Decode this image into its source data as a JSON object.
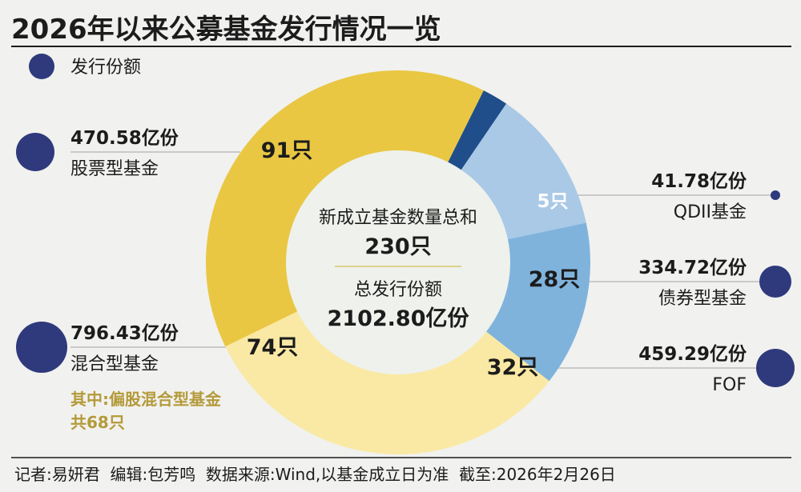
{
  "title": "2026年以来公募基金发行情况一览",
  "legend_label": "发行份额",
  "center": {
    "count_label": "新成立基金数量总和",
    "count_value": "230只",
    "share_label": "总发行份额",
    "share_value": "2102.80亿份"
  },
  "note": {
    "line1": "其中:偏股混合型基金",
    "line2": "共68只"
  },
  "footer": "记者:易妍君  编辑:包芳鸣  数据来源:Wind,以基金成立日为准  截至:2026年2月26日",
  "colors": {
    "stock": "#e9c743",
    "hybrid": "#fae9a4",
    "fof": "#7fb3dc",
    "bond": "#a9c9e6",
    "qdii": "#1f4e8a",
    "dot": "#2f3a7d",
    "center": "#eef1ec"
  },
  "chart_data": {
    "type": "pie",
    "title": "2026年以来公募基金发行情况一览",
    "unit_count": "只",
    "unit_share": "亿份",
    "slices": [
      {
        "name": "股票型基金",
        "count": 91,
        "count_label": "91只",
        "share": 470.58,
        "share_label": "470.58亿份",
        "color": "#e9c743"
      },
      {
        "name": "QDII基金",
        "count": 5,
        "count_label": "5只",
        "share": 41.78,
        "share_label": "41.78亿份",
        "color": "#1f4e8a"
      },
      {
        "name": "债券型基金",
        "count": 28,
        "count_label": "28只",
        "share": 334.72,
        "share_label": "334.72亿份",
        "color": "#a9c9e6"
      },
      {
        "name": "FOF",
        "count": 32,
        "count_label": "32只",
        "share": 459.29,
        "share_label": "459.29亿份",
        "color": "#7fb3dc"
      },
      {
        "name": "混合型基金",
        "count": 74,
        "count_label": "74只",
        "share": 796.43,
        "share_label": "796.43亿份",
        "color": "#fae9a4"
      }
    ],
    "total_count": 230,
    "total_share": 2102.8
  }
}
